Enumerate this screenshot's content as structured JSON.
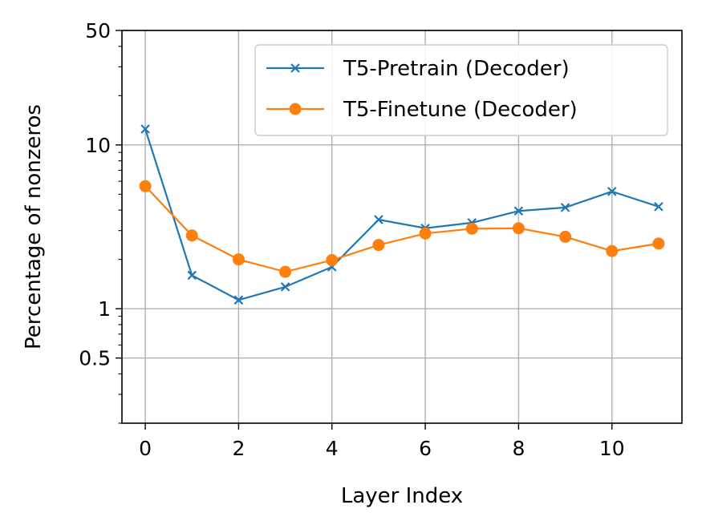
{
  "chart_data": {
    "type": "line",
    "title": "",
    "xlabel": "Layer Index",
    "ylabel": "Percentage of nonzeros",
    "x": [
      0,
      1,
      2,
      3,
      4,
      5,
      6,
      7,
      8,
      9,
      10,
      11
    ],
    "xlim": [
      -0.5,
      11.5
    ],
    "ylim": [
      0.2,
      50
    ],
    "yscale": "log",
    "xticks": [
      0,
      2,
      4,
      6,
      8,
      10
    ],
    "xtick_labels": [
      "0",
      "2",
      "4",
      "6",
      "8",
      "10"
    ],
    "yticks": [
      0.5,
      1,
      10,
      50
    ],
    "ytick_labels": [
      "0.5",
      "1",
      "10",
      "50"
    ],
    "grid": true,
    "legend_position": "upper right",
    "series": [
      {
        "name": "T5-Pretrain (Decoder)",
        "color": "#1f77b4",
        "marker": "x",
        "values": [
          12.5,
          1.6,
          1.13,
          1.36,
          1.8,
          3.5,
          3.1,
          3.35,
          3.95,
          4.15,
          5.2,
          4.2
        ]
      },
      {
        "name": "T5-Finetune (Decoder)",
        "color": "#ff7f0e",
        "marker": "o",
        "values": [
          5.6,
          2.8,
          2.0,
          1.68,
          1.98,
          2.45,
          2.88,
          3.08,
          3.1,
          2.75,
          2.25,
          2.5
        ]
      }
    ]
  }
}
